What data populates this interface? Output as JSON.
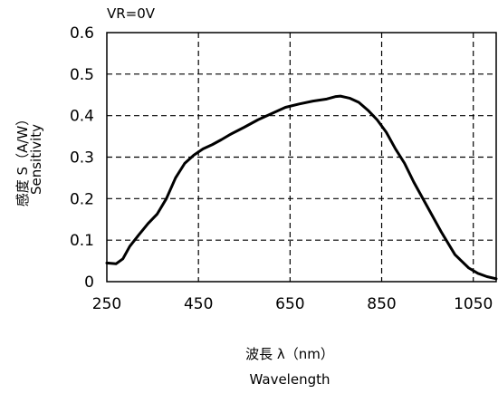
{
  "chart_data": {
    "type": "line",
    "annotation": "VR=0V",
    "xlabel": "波長 λ（nm）",
    "xlabel_en": "Wavelength",
    "ylabel": "感度 S（A/W）",
    "ylabel_en": "Sensitivity",
    "xlim": [
      250,
      1100
    ],
    "ylim": [
      0,
      0.6
    ],
    "x_ticks": [
      250,
      450,
      650,
      850,
      1050
    ],
    "x_tick_labels": [
      "250",
      "450",
      "650",
      "850",
      "1050"
    ],
    "y_ticks": [
      0,
      0.1,
      0.2,
      0.3,
      0.4,
      0.5,
      0.6
    ],
    "y_tick_labels": [
      "0",
      "0.1",
      "0.2",
      "0.3",
      "0.4",
      "0.5",
      "0.6"
    ],
    "grid": true,
    "line_color": "#000000",
    "series": [
      {
        "x": [
          250,
          270,
          285,
          300,
          320,
          340,
          360,
          380,
          400,
          420,
          440,
          460,
          480,
          500,
          520,
          550,
          580,
          610,
          640,
          670,
          700,
          730,
          750,
          760,
          780,
          800,
          820,
          840,
          860,
          880,
          900,
          920,
          950,
          980,
          1010,
          1040,
          1060,
          1080,
          1100
        ],
        "y": [
          0.045,
          0.043,
          0.055,
          0.085,
          0.113,
          0.14,
          0.163,
          0.2,
          0.25,
          0.285,
          0.305,
          0.32,
          0.33,
          0.342,
          0.355,
          0.372,
          0.39,
          0.405,
          0.42,
          0.428,
          0.435,
          0.44,
          0.446,
          0.447,
          0.442,
          0.432,
          0.413,
          0.39,
          0.36,
          0.32,
          0.285,
          0.24,
          0.18,
          0.12,
          0.065,
          0.033,
          0.02,
          0.012,
          0.007
        ]
      }
    ]
  }
}
